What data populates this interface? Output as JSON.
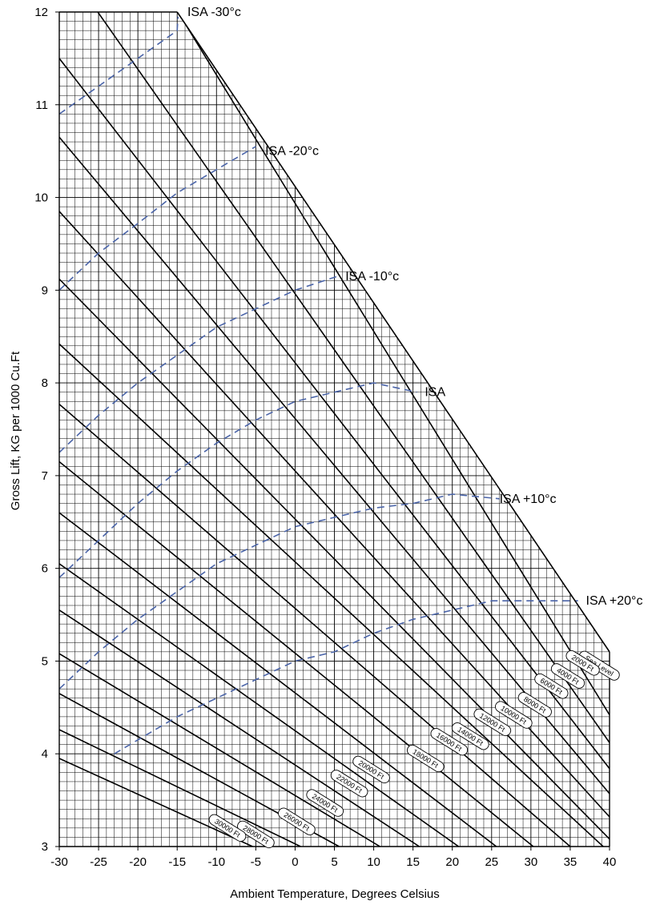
{
  "chart_data": {
    "type": "line",
    "xlabel": "Ambient Temperature, Degrees Celsius",
    "ylabel": "Gross Lift, KG per 1000 Cu.Ft",
    "xlim": [
      -30,
      40
    ],
    "ylim": [
      3,
      12
    ],
    "x_ticks": [
      -30,
      -25,
      -20,
      -15,
      -10,
      -5,
      0,
      5,
      10,
      15,
      20,
      25,
      30,
      35,
      40
    ],
    "y_ticks": [
      3,
      4,
      5,
      6,
      7,
      8,
      9,
      10,
      11,
      12
    ],
    "grid": true,
    "envelope": [
      [
        -15,
        12
      ],
      [
        40,
        5.1
      ]
    ],
    "altitude_series": [
      {
        "name": "Sea Level",
        "points": [
          [
            40,
            4.42
          ],
          [
            4.6,
            9.3
          ],
          [
            -14.9,
            12
          ]
        ],
        "label_at": [
          38.7,
          4.95
        ]
      },
      {
        "name": "2000 Ft",
        "points": [
          [
            40,
            4.12
          ],
          [
            -25.1,
            12
          ]
        ],
        "label_at": [
          36.6,
          4.98
        ]
      },
      {
        "name": "4000 Ft",
        "points": [
          [
            40,
            3.84
          ],
          [
            -30,
            11.5
          ]
        ],
        "label_at": [
          34.7,
          4.84
        ]
      },
      {
        "name": "6000 Ft",
        "points": [
          [
            40,
            3.57
          ],
          [
            -30,
            10.65
          ]
        ],
        "label_at": [
          32.6,
          4.73
        ]
      },
      {
        "name": "8000 Ft",
        "points": [
          [
            40,
            3.32
          ],
          [
            -30,
            9.85
          ]
        ],
        "label_at": [
          30.5,
          4.53
        ]
      },
      {
        "name": "10000 Ft",
        "points": [
          [
            40,
            3.08
          ],
          [
            -30,
            9.12
          ]
        ],
        "label_at": [
          27.8,
          4.42
        ]
      },
      {
        "name": "12000 Ft",
        "points": [
          [
            39.2,
            3
          ],
          [
            -30,
            8.42
          ]
        ],
        "label_at": [
          25.1,
          4.34
        ]
      },
      {
        "name": "14000 Ft",
        "points": [
          [
            35,
            3
          ],
          [
            -30,
            7.77
          ]
        ],
        "label_at": [
          22.3,
          4.19
        ]
      },
      {
        "name": "16000 Ft",
        "points": [
          [
            30.3,
            3
          ],
          [
            -30,
            7.15
          ]
        ],
        "label_at": [
          19.6,
          4.13
        ]
      },
      {
        "name": "18000 Ft",
        "points": [
          [
            25.6,
            3
          ],
          [
            -30,
            6.6
          ]
        ],
        "label_at": [
          16.6,
          3.95
        ]
      },
      {
        "name": "20000 Ft",
        "points": [
          [
            20.8,
            3
          ],
          [
            -30,
            6.05
          ]
        ],
        "label_at": [
          9.7,
          3.83
        ]
      },
      {
        "name": "22000 Ft",
        "points": [
          [
            15.8,
            3
          ],
          [
            -30,
            5.55
          ]
        ],
        "label_at": [
          6.9,
          3.68
        ]
      },
      {
        "name": "24000 Ft",
        "points": [
          [
            10.8,
            3
          ],
          [
            -30,
            5.08
          ]
        ],
        "label_at": [
          3.8,
          3.47
        ]
      },
      {
        "name": "26000 Ft",
        "points": [
          [
            5.6,
            3
          ],
          [
            -30,
            4.65
          ]
        ],
        "label_at": [
          0.2,
          3.27
        ]
      },
      {
        "name": "28000 Ft",
        "points": [
          [
            0.7,
            3
          ],
          [
            -30,
            4.26
          ]
        ],
        "label_at": [
          -5,
          3.13
        ]
      },
      {
        "name": "30000 Ft",
        "points": [
          [
            -5.4,
            3
          ],
          [
            -30,
            3.95
          ]
        ],
        "label_at": [
          -8.6,
          3.2
        ]
      }
    ],
    "isa_series": [
      {
        "name": "ISA -30°c",
        "points": [
          [
            -30,
            10.9
          ],
          [
            -25,
            11.2
          ],
          [
            -20,
            11.5
          ],
          [
            -15,
            11.8
          ],
          [
            -14.9,
            11.95
          ]
        ],
        "label_at": [
          -13.7,
          12.0
        ]
      },
      {
        "name": "ISA -20°c",
        "points": [
          [
            -30,
            9.0
          ],
          [
            -25,
            9.4
          ],
          [
            -20,
            9.72
          ],
          [
            -15,
            10.05
          ],
          [
            -10,
            10.3
          ],
          [
            -5,
            10.55
          ]
        ],
        "label_at": [
          -3.8,
          10.5
        ]
      },
      {
        "name": "ISA -10°c",
        "points": [
          [
            -30,
            7.25
          ],
          [
            -25,
            7.65
          ],
          [
            -20,
            8.0
          ],
          [
            -15,
            8.3
          ],
          [
            -10,
            8.6
          ],
          [
            -5,
            8.8
          ],
          [
            0,
            9.0
          ],
          [
            5.4,
            9.15
          ]
        ],
        "label_at": [
          6.4,
          9.15
        ]
      },
      {
        "name": "ISA",
        "points": [
          [
            -30,
            5.9
          ],
          [
            -25,
            6.3
          ],
          [
            -20,
            6.7
          ],
          [
            -15,
            7.05
          ],
          [
            -10,
            7.35
          ],
          [
            -5,
            7.6
          ],
          [
            0,
            7.8
          ],
          [
            5,
            7.9
          ],
          [
            10,
            8.0
          ],
          [
            15.5,
            7.9
          ]
        ],
        "label_at": [
          16.5,
          7.9
        ]
      },
      {
        "name": "ISA +10°c",
        "points": [
          [
            -30,
            4.7
          ],
          [
            -25,
            5.1
          ],
          [
            -20,
            5.45
          ],
          [
            -15,
            5.75
          ],
          [
            -10,
            6.05
          ],
          [
            -5,
            6.25
          ],
          [
            0,
            6.45
          ],
          [
            5,
            6.55
          ],
          [
            10,
            6.65
          ],
          [
            15,
            6.7
          ],
          [
            20,
            6.8
          ],
          [
            26,
            6.75
          ]
        ],
        "label_at": [
          26,
          6.75
        ]
      },
      {
        "name": "ISA +20°c",
        "points": [
          [
            -23,
            4.0
          ],
          [
            -15,
            4.4
          ],
          [
            -10,
            4.6
          ],
          [
            -5,
            4.8
          ],
          [
            0,
            5.0
          ],
          [
            5,
            5.1
          ],
          [
            10,
            5.3
          ],
          [
            15,
            5.45
          ],
          [
            20,
            5.55
          ],
          [
            25,
            5.65
          ],
          [
            30,
            5.65
          ],
          [
            36,
            5.65
          ]
        ],
        "label_at": [
          37,
          5.65
        ]
      }
    ],
    "colors": {
      "altitude_lines": "#000000",
      "isa_lines": "#4a64a8",
      "grid": "#000000",
      "label_box_border": "#000000"
    }
  }
}
